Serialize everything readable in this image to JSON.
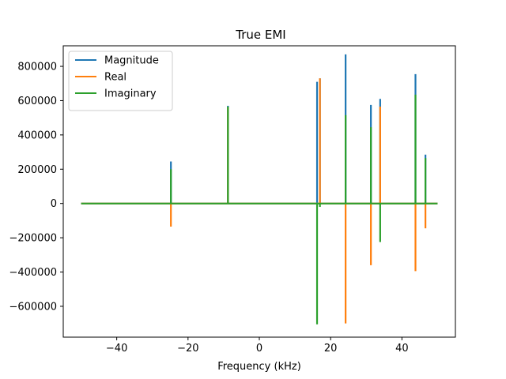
{
  "chart_data": {
    "type": "line",
    "title": "True EMI",
    "xlabel": "Frequency (kHz)",
    "ylabel": "",
    "xlim": [
      -55,
      55
    ],
    "ylim": [
      -780000,
      920000
    ],
    "x_ticks": [
      -40,
      -20,
      0,
      20,
      40
    ],
    "y_ticks": [
      -600000,
      -400000,
      -200000,
      0,
      200000,
      400000,
      600000,
      800000
    ],
    "grid": false,
    "legend_position": "top-left",
    "baseline_x": [
      -50,
      50
    ],
    "series": [
      {
        "name": "Magnitude",
        "color": "#1f77b4",
        "spikes": [
          {
            "x": -24.8,
            "y": 245000
          },
          {
            "x": -8.8,
            "y": 570000
          },
          {
            "x": 16.2,
            "y": 710000
          },
          {
            "x": 17.0,
            "y": 730000
          },
          {
            "x": 24.2,
            "y": 870000
          },
          {
            "x": 31.3,
            "y": 575000
          },
          {
            "x": 33.9,
            "y": 610000
          },
          {
            "x": 43.8,
            "y": 755000
          },
          {
            "x": 46.6,
            "y": 285000
          }
        ]
      },
      {
        "name": "Real",
        "color": "#ff7f0e",
        "spikes": [
          {
            "x": -24.8,
            "y": -135000
          },
          {
            "x": -8.8,
            "y": 560000
          },
          {
            "x": 17.0,
            "y": 730000
          },
          {
            "x": 24.2,
            "y": -700000
          },
          {
            "x": 31.3,
            "y": -360000
          },
          {
            "x": 33.9,
            "y": 565000
          },
          {
            "x": 43.8,
            "y": -395000
          },
          {
            "x": 46.6,
            "y": -145000
          }
        ]
      },
      {
        "name": "Imaginary",
        "color": "#2ca02c",
        "spikes": [
          {
            "x": -24.8,
            "y": 200000
          },
          {
            "x": -8.8,
            "y": 565000
          },
          {
            "x": 16.2,
            "y": -705000
          },
          {
            "x": 17.0,
            "y": -20000
          },
          {
            "x": 24.2,
            "y": 515000
          },
          {
            "x": 31.3,
            "y": 445000
          },
          {
            "x": 33.9,
            "y": -225000
          },
          {
            "x": 43.8,
            "y": 635000
          },
          {
            "x": 46.6,
            "y": 265000
          }
        ]
      }
    ]
  }
}
